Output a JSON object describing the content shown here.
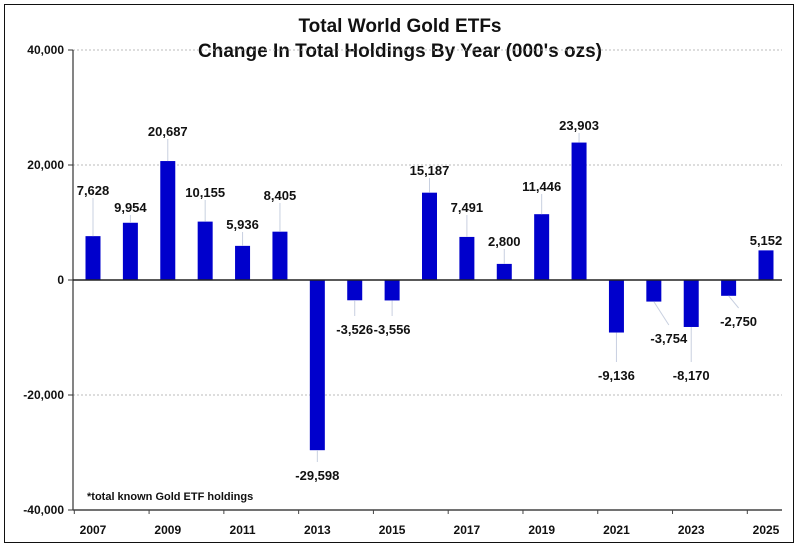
{
  "chart_data": {
    "type": "bar",
    "title": "Total World Gold ETFs",
    "subtitle": "Change In Total Holdings By Year (000's ozs)",
    "footnote": "*total known Gold ETF holdings",
    "categories": [
      "2007",
      "2008",
      "2009",
      "2010",
      "2011",
      "2012",
      "2013",
      "2014",
      "2015",
      "2016",
      "2017",
      "2018",
      "2019",
      "2020",
      "2021",
      "2022",
      "2023",
      "2024",
      "2025"
    ],
    "values": [
      7628,
      9954,
      20687,
      10155,
      5936,
      8405,
      -29598,
      -3526,
      -3556,
      15187,
      7491,
      2800,
      11446,
      23903,
      -9136,
      -3754,
      -8170,
      -2750,
      5152
    ],
    "data_labels": [
      "7,628",
      "9,954",
      "20,687",
      "10,155",
      "5,936",
      "8,405",
      "-29,598",
      "-3,526",
      "-3,556",
      "15,187",
      "7,491",
      "2,800",
      "11,446",
      "23,903",
      "-9,136",
      "-3,754",
      "-8,170",
      "-2,750",
      "5,152"
    ],
    "x_tick_labels": [
      "2007",
      "2009",
      "2011",
      "2013",
      "2015",
      "2017",
      "2019",
      "2021",
      "2023",
      "2025"
    ],
    "y_tick_labels": [
      "40,000",
      "20,000",
      "0",
      "-20,000",
      "-40,000"
    ],
    "y_ticks": [
      40000,
      20000,
      0,
      -20000,
      -40000
    ],
    "ylim": [
      -40000,
      40000
    ],
    "xlabel": "",
    "ylabel": "",
    "grid": "horizontal dotted",
    "bar_color": "#0000cc"
  }
}
